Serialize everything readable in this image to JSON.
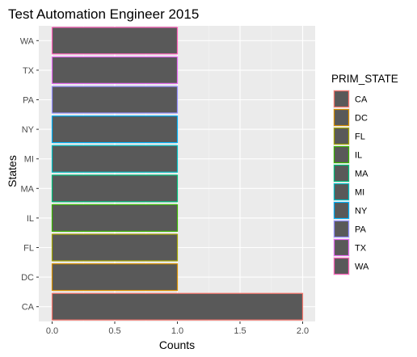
{
  "chart_data": {
    "type": "bar",
    "orientation": "horizontal",
    "title": "Test Automation Engineer 2015",
    "xlabel": "Counts",
    "ylabel": "States",
    "categories": [
      "CA",
      "DC",
      "FL",
      "IL",
      "MA",
      "MI",
      "NY",
      "PA",
      "TX",
      "WA"
    ],
    "values": [
      2,
      1,
      1,
      1,
      1,
      1,
      1,
      1,
      1,
      1
    ],
    "xlim": [
      0,
      2
    ],
    "xticks": [
      "0.0",
      "0.5",
      "1.0",
      "1.5",
      "2.0"
    ],
    "grid": true,
    "fill_color": "#595959",
    "panel_color": "#ebebeb",
    "legend": {
      "title": "PRIM_STATE",
      "position": "right",
      "entries": [
        {
          "label": "CA",
          "color": "#F8766D"
        },
        {
          "label": "DC",
          "color": "#D89000"
        },
        {
          "label": "FL",
          "color": "#A3A500"
        },
        {
          "label": "IL",
          "color": "#39B600"
        },
        {
          "label": "MA",
          "color": "#00BF7D"
        },
        {
          "label": "MI",
          "color": "#00BFC4"
        },
        {
          "label": "NY",
          "color": "#00B0F6"
        },
        {
          "label": "PA",
          "color": "#9590FF"
        },
        {
          "label": "TX",
          "color": "#E76BF3"
        },
        {
          "label": "WA",
          "color": "#FF62BC"
        }
      ]
    }
  }
}
